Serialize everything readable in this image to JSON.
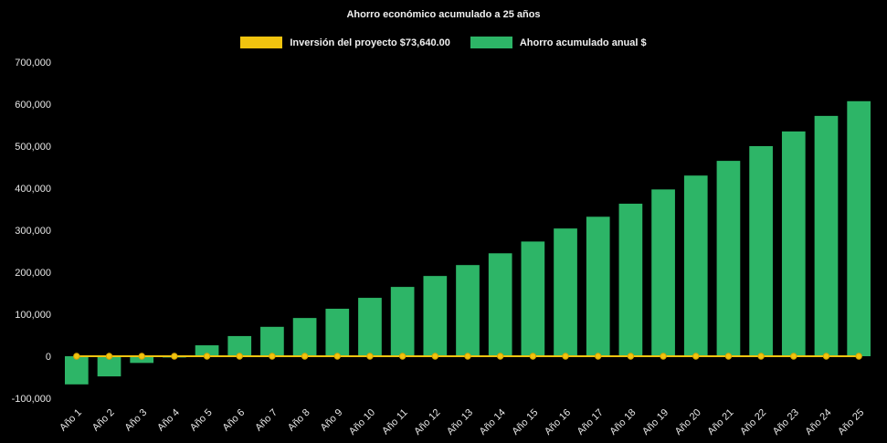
{
  "chart_data": {
    "type": "bar",
    "title": "Ahorro económico acumulado a 25 años",
    "categories": [
      "Año 1",
      "Año 2",
      "Año 3",
      "Año 4",
      "Año 5",
      "Año 6",
      "Año 7",
      "Año 8",
      "Año 9",
      "Año 10",
      "Año 11",
      "Año 12",
      "Año 13",
      "Año 14",
      "Año 15",
      "Año 16",
      "Año 17",
      "Año 18",
      "Año 19",
      "Año 20",
      "Año 21",
      "Año 22",
      "Año 23",
      "Año 24",
      "Año 25"
    ],
    "series": [
      {
        "name": "Inversión del proyecto $73,640.00",
        "type": "line",
        "color": "#f1c40f",
        "marker_edge_color": "#d9a400",
        "values": [
          0,
          0,
          0,
          0,
          0,
          0,
          0,
          0,
          0,
          0,
          0,
          0,
          0,
          0,
          0,
          0,
          0,
          0,
          0,
          0,
          0,
          0,
          0,
          0,
          0
        ]
      },
      {
        "name": "Ahorro acumulado anual $",
        "type": "bar",
        "color": "#2db567",
        "values": [
          -67000,
          -48000,
          -16000,
          -3000,
          26000,
          48000,
          70000,
          91000,
          113000,
          139000,
          165000,
          191000,
          217000,
          245000,
          273000,
          304000,
          332000,
          363000,
          397000,
          430000,
          465000,
          500000,
          535000,
          572000,
          607000
        ]
      }
    ],
    "xlabel": "",
    "ylabel": "",
    "ylim": [
      -100000,
      700000
    ],
    "ytick_step": 100000,
    "grid": false,
    "legend_position": "top",
    "background": "#000000",
    "text_color": "#e6e6e6"
  }
}
